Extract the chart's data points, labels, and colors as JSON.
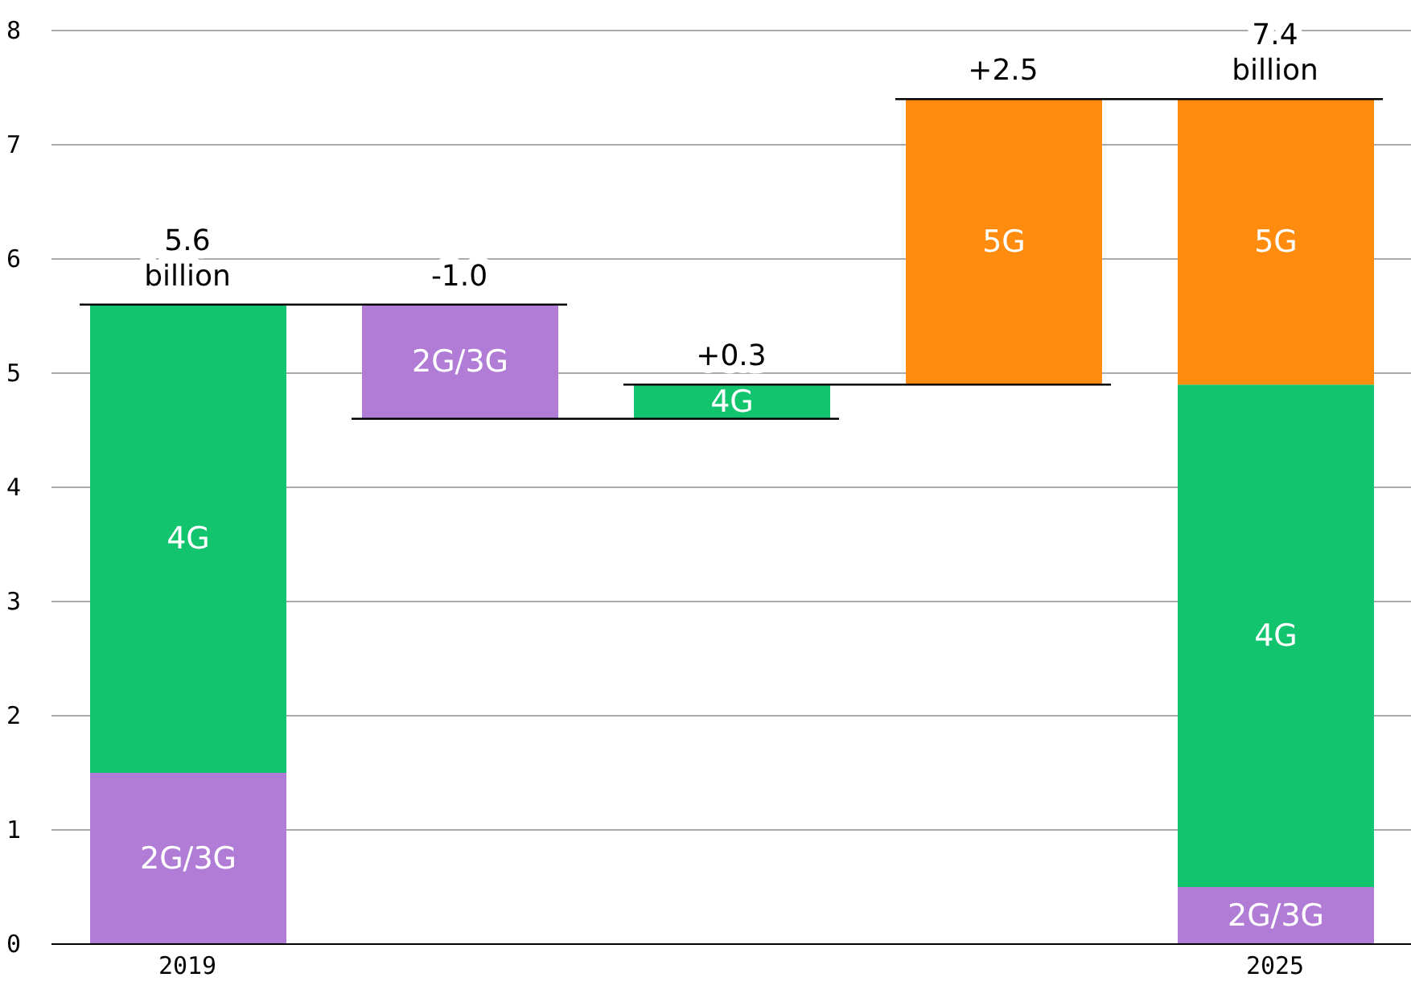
{
  "chart_data": {
    "type": "bar",
    "categories": [
      "2019",
      null,
      null,
      null,
      "2025"
    ],
    "series": [
      {
        "name": "2G/3G",
        "color": "#b07cd6",
        "base": [
          0,
          5.6,
          null,
          null,
          0
        ],
        "values": [
          1.5,
          -1.0,
          null,
          null,
          0.5
        ]
      },
      {
        "name": "4G",
        "color": "#12c46e",
        "base": [
          1.5,
          null,
          4.6,
          null,
          0.5
        ],
        "values": [
          4.1,
          null,
          0.3,
          null,
          4.4
        ]
      },
      {
        "name": "5G",
        "color": "#ff8c0e",
        "base": [
          null,
          null,
          null,
          4.9,
          4.9
        ],
        "values": [
          null,
          null,
          null,
          2.5,
          2.5
        ]
      }
    ],
    "totals": [
      "5.6 billion",
      "-1.0",
      "+0.3",
      "+2.5",
      "7.4 billion"
    ],
    "ylim": [
      0,
      8
    ],
    "yticks": [
      0,
      1,
      2,
      3,
      4,
      5,
      6,
      7,
      8
    ],
    "grid": "y",
    "legend": false
  }
}
